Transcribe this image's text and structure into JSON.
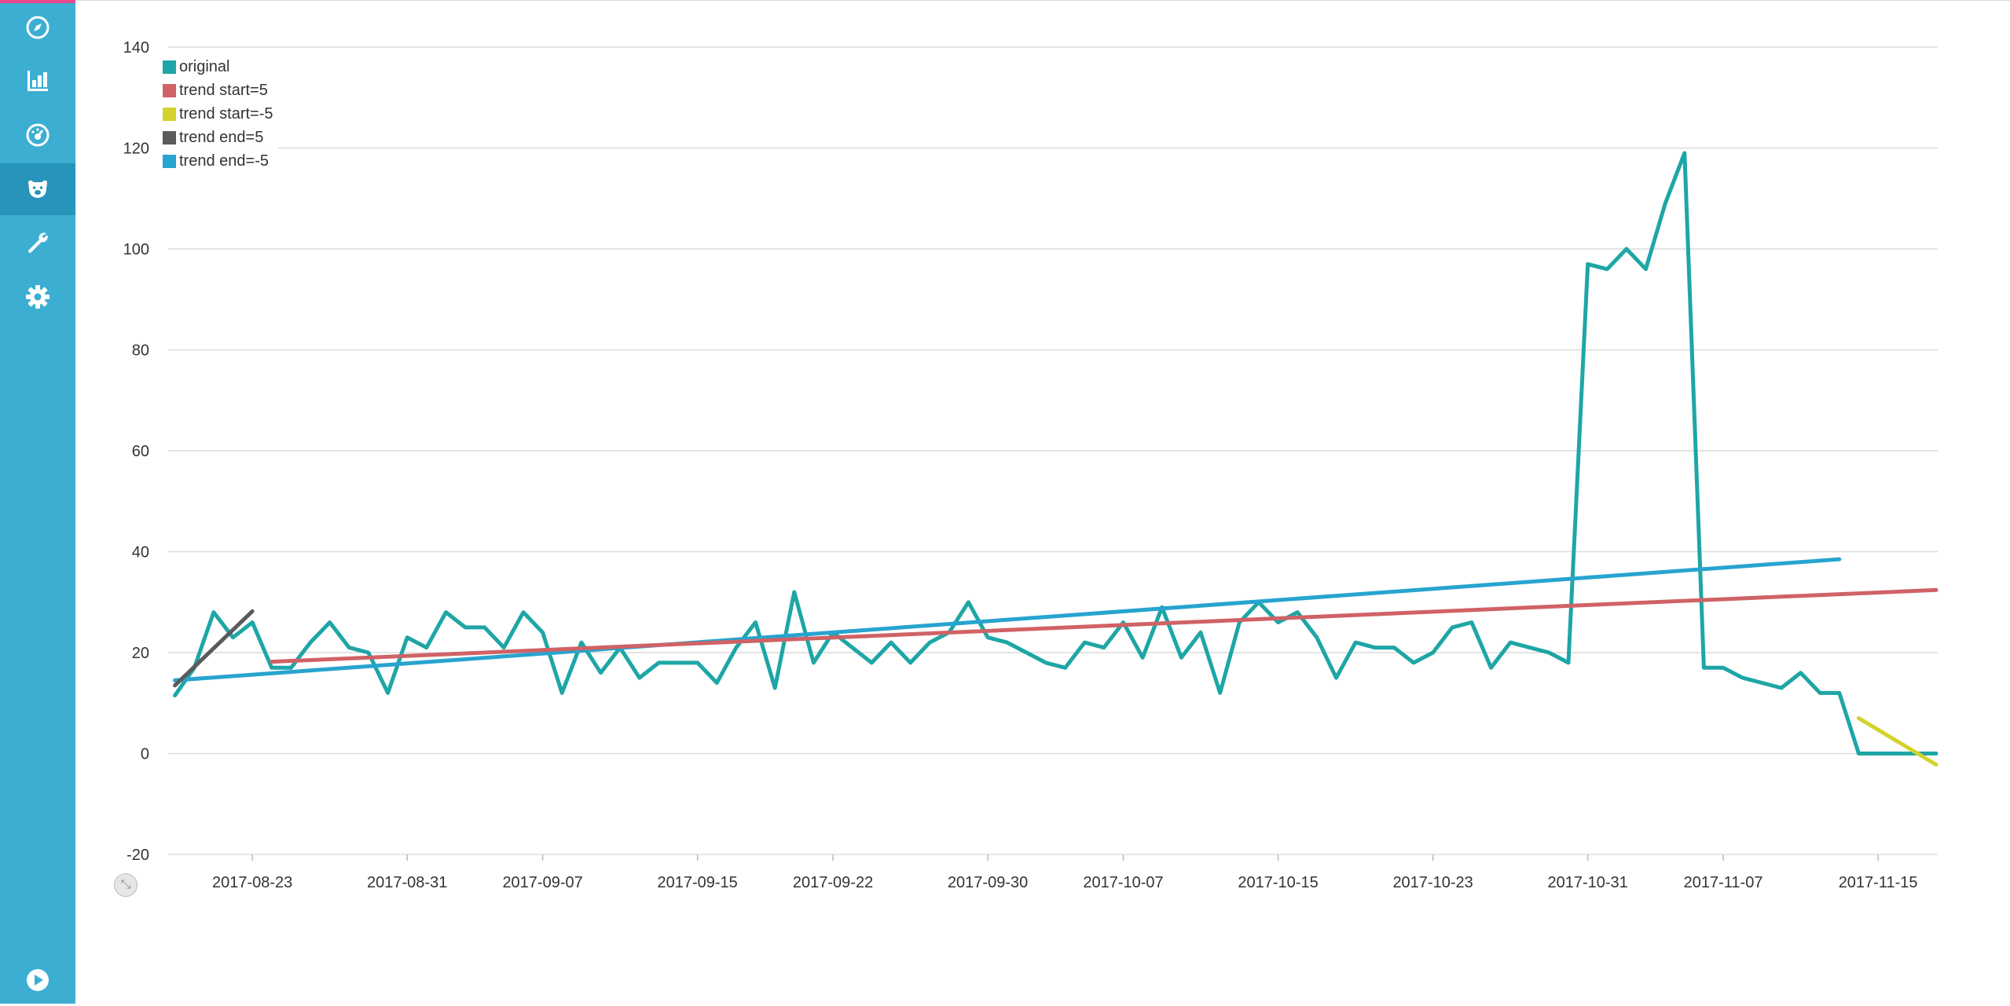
{
  "sidebar": {
    "items": [
      {
        "name": "discover",
        "icon": "compass-icon"
      },
      {
        "name": "visualize",
        "icon": "bar-chart-icon"
      },
      {
        "name": "dashboard",
        "icon": "dashboard-gauge-icon"
      },
      {
        "name": "timelion",
        "icon": "bear-icon",
        "active": true
      },
      {
        "name": "dev-tools",
        "icon": "wrench-icon"
      },
      {
        "name": "management",
        "icon": "gear-icon"
      }
    ],
    "bottom_icon": "play-icon"
  },
  "colors": {
    "sidebar_bg": "#3caed2",
    "sidebar_active": "#2694bb",
    "original": "#1ea6a6",
    "trend_start_5": "#cf6266",
    "trend_start_neg5": "#d4d22d",
    "trend_end_5": "#5b5b5b",
    "trend_end_neg5": "#27a4cf"
  },
  "chart_data": {
    "type": "line",
    "ylim": [
      -20,
      140
    ],
    "yticks": [
      140,
      120,
      100,
      80,
      60,
      40,
      20,
      0,
      -20
    ],
    "x_range": [
      "2017-08-18",
      "2017-11-18"
    ],
    "xticks": [
      "2017-08-23",
      "2017-08-31",
      "2017-09-07",
      "2017-09-15",
      "2017-09-22",
      "2017-09-30",
      "2017-10-07",
      "2017-10-15",
      "2017-10-23",
      "2017-10-31",
      "2017-11-07",
      "2017-11-15"
    ],
    "grid": true,
    "legend": "top-left",
    "series": [
      {
        "name": "original",
        "color": "#1ea6a6",
        "x": [
          "2017-08-19",
          "2017-08-20",
          "2017-08-21",
          "2017-08-22",
          "2017-08-23",
          "2017-08-24",
          "2017-08-25",
          "2017-08-26",
          "2017-08-27",
          "2017-08-28",
          "2017-08-29",
          "2017-08-30",
          "2017-08-31",
          "2017-09-01",
          "2017-09-02",
          "2017-09-03",
          "2017-09-04",
          "2017-09-05",
          "2017-09-06",
          "2017-09-07",
          "2017-09-08",
          "2017-09-09",
          "2017-09-10",
          "2017-09-11",
          "2017-09-12",
          "2017-09-13",
          "2017-09-14",
          "2017-09-15",
          "2017-09-16",
          "2017-09-17",
          "2017-09-18",
          "2017-09-19",
          "2017-09-20",
          "2017-09-21",
          "2017-09-22",
          "2017-09-23",
          "2017-09-24",
          "2017-09-25",
          "2017-09-26",
          "2017-09-27",
          "2017-09-28",
          "2017-09-29",
          "2017-09-30",
          "2017-10-01",
          "2017-10-02",
          "2017-10-03",
          "2017-10-04",
          "2017-10-05",
          "2017-10-06",
          "2017-10-07",
          "2017-10-08",
          "2017-10-09",
          "2017-10-10",
          "2017-10-11",
          "2017-10-12",
          "2017-10-13",
          "2017-10-14",
          "2017-10-15",
          "2017-10-16",
          "2017-10-17",
          "2017-10-18",
          "2017-10-19",
          "2017-10-20",
          "2017-10-21",
          "2017-10-22",
          "2017-10-23",
          "2017-10-24",
          "2017-10-25",
          "2017-10-26",
          "2017-10-27",
          "2017-10-28",
          "2017-10-29",
          "2017-10-30",
          "2017-10-31",
          "2017-11-01",
          "2017-11-02",
          "2017-11-03",
          "2017-11-04",
          "2017-11-05",
          "2017-11-06",
          "2017-11-07",
          "2017-11-08",
          "2017-11-09",
          "2017-11-10",
          "2017-11-11",
          "2017-11-12",
          "2017-11-13",
          "2017-11-14",
          "2017-11-15",
          "2017-11-16",
          "2017-11-17",
          "2017-11-18"
        ],
        "values": [
          11.5,
          17,
          28,
          23,
          26,
          17,
          17,
          22,
          26,
          21,
          20,
          12,
          23,
          21,
          28,
          25,
          25,
          21,
          28,
          24,
          12,
          22,
          16,
          21,
          15,
          18,
          18,
          18,
          14,
          21,
          26,
          13,
          32,
          18,
          24,
          21,
          18,
          22,
          18,
          22,
          24,
          30,
          23,
          22,
          20,
          18,
          17,
          22,
          21,
          26,
          19,
          29,
          19,
          24,
          12,
          26,
          30,
          26,
          28,
          23,
          15,
          22,
          21,
          21,
          18,
          20,
          25,
          26,
          17,
          22,
          21,
          20,
          18,
          97,
          96,
          100,
          96,
          109,
          119,
          17,
          17,
          15,
          14,
          13,
          16,
          12,
          12,
          0,
          0,
          0,
          0,
          0
        ]
      },
      {
        "name": "trend start=5",
        "color": "#cf6266",
        "x": [
          "2017-08-24",
          "2017-11-18"
        ],
        "values": [
          18.2,
          32.4
        ]
      },
      {
        "name": "trend start=-5",
        "color": "#d4d22d",
        "x": [
          "2017-11-14",
          "2017-11-18"
        ],
        "values": [
          7.0,
          -2.2
        ]
      },
      {
        "name": "trend end=5",
        "color": "#5b5b5b",
        "x": [
          "2017-08-19",
          "2017-08-23"
        ],
        "values": [
          13.5,
          28.2
        ]
      },
      {
        "name": "trend end=-5",
        "color": "#27a4cf",
        "x": [
          "2017-08-19",
          "2017-11-13"
        ],
        "values": [
          14.5,
          38.5
        ]
      }
    ]
  }
}
